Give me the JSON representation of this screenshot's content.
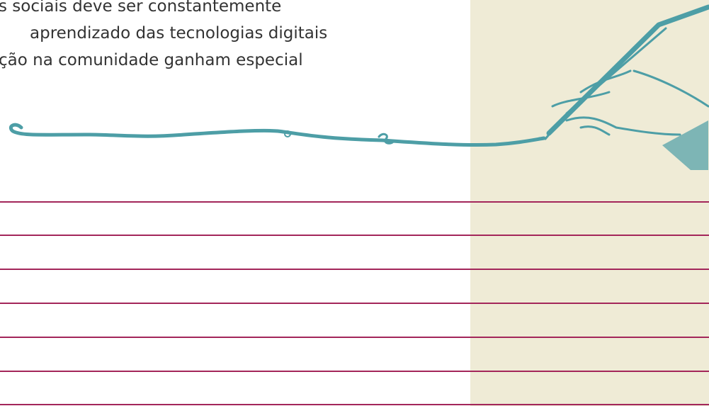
{
  "text_lines": [
    "s sociais deve ser constantemente",
    "aprendizado das tecnologias digitais",
    "ção na comunidade ganham especial"
  ]
}
